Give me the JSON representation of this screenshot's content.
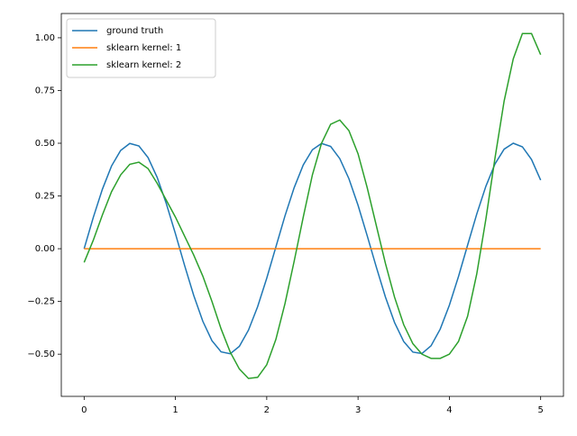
{
  "chart_data": {
    "type": "line",
    "x": [
      0,
      0.1,
      0.2,
      0.3,
      0.4,
      0.5,
      0.6,
      0.7,
      0.8,
      0.9,
      1,
      1.1,
      1.2,
      1.3,
      1.4,
      1.5,
      1.6,
      1.7,
      1.8,
      1.9,
      2,
      2.1,
      2.2,
      2.3,
      2.4,
      2.5,
      2.6,
      2.7,
      2.8,
      2.9,
      3,
      3.1,
      3.2,
      3.3,
      3.4,
      3.5,
      3.6,
      3.7,
      3.8,
      3.9,
      4,
      4.1,
      4.2,
      4.3,
      4.4,
      4.5,
      4.6,
      4.7,
      4.8,
      4.9,
      5
    ],
    "series": [
      {
        "name": "ground truth",
        "color": "#1f77b4",
        "values": [
          0,
          0.148,
          0.282,
          0.392,
          0.466,
          0.499,
          0.487,
          0.432,
          0.338,
          0.214,
          0.071,
          -0.079,
          -0.221,
          -0.344,
          -0.436,
          -0.489,
          -0.498,
          -0.463,
          -0.386,
          -0.275,
          -0.14,
          0.008,
          0.156,
          0.289,
          0.397,
          0.469,
          0.499,
          0.485,
          0.427,
          0.332,
          0.206,
          0.062,
          -0.087,
          -0.229,
          -0.35,
          -0.44,
          -0.49,
          -0.497,
          -0.46,
          -0.381,
          -0.268,
          -0.132,
          0.017,
          0.164,
          0.296,
          0.402,
          0.472,
          0.5,
          0.483,
          0.423,
          0.325
        ]
      },
      {
        "name": "sklearn kernel: 1",
        "color": "#ff7f0e",
        "values": [
          0,
          0,
          0,
          0,
          0,
          0,
          0,
          0,
          0,
          0,
          0,
          0,
          0,
          0,
          0,
          0,
          0,
          0,
          0,
          0,
          0,
          0,
          0,
          0,
          0,
          0,
          0,
          0,
          0,
          0,
          0,
          0,
          0,
          0,
          0,
          0,
          0,
          0,
          0,
          0,
          0,
          0,
          0,
          0,
          0,
          0,
          0,
          0,
          0,
          0,
          0
        ]
      },
      {
        "name": "sklearn kernel: 2",
        "color": "#2ca02c",
        "values": [
          -0.065,
          0.04,
          0.16,
          0.27,
          0.35,
          0.4,
          0.41,
          0.38,
          0.31,
          0.23,
          0.15,
          0.06,
          -0.03,
          -0.13,
          -0.25,
          -0.38,
          -0.49,
          -0.57,
          -0.615,
          -0.61,
          -0.55,
          -0.43,
          -0.26,
          -0.06,
          0.15,
          0.35,
          0.5,
          0.59,
          0.61,
          0.56,
          0.45,
          0.29,
          0.11,
          -0.07,
          -0.23,
          -0.36,
          -0.45,
          -0.5,
          -0.52,
          -0.52,
          -0.5,
          -0.44,
          -0.32,
          -0.12,
          0.14,
          0.43,
          0.7,
          0.9,
          1.02,
          1.02,
          0.92
        ]
      }
    ],
    "xlim": [
      -0.25,
      5.25
    ],
    "xticks": [
      0,
      1,
      2,
      3,
      4,
      5
    ],
    "ylim": [
      -0.7,
      1.115
    ],
    "yticks": [
      {
        "value": -0.5,
        "label": "−0.50"
      },
      {
        "value": -0.25,
        "label": "−0.25"
      },
      {
        "value": 0,
        "label": "0.00"
      },
      {
        "value": 0.25,
        "label": "0.25"
      },
      {
        "value": 0.5,
        "label": "0.50"
      },
      {
        "value": 0.75,
        "label": "0.75"
      },
      {
        "value": 1,
        "label": "1.00"
      }
    ],
    "grid": false,
    "legend": "upper left"
  }
}
